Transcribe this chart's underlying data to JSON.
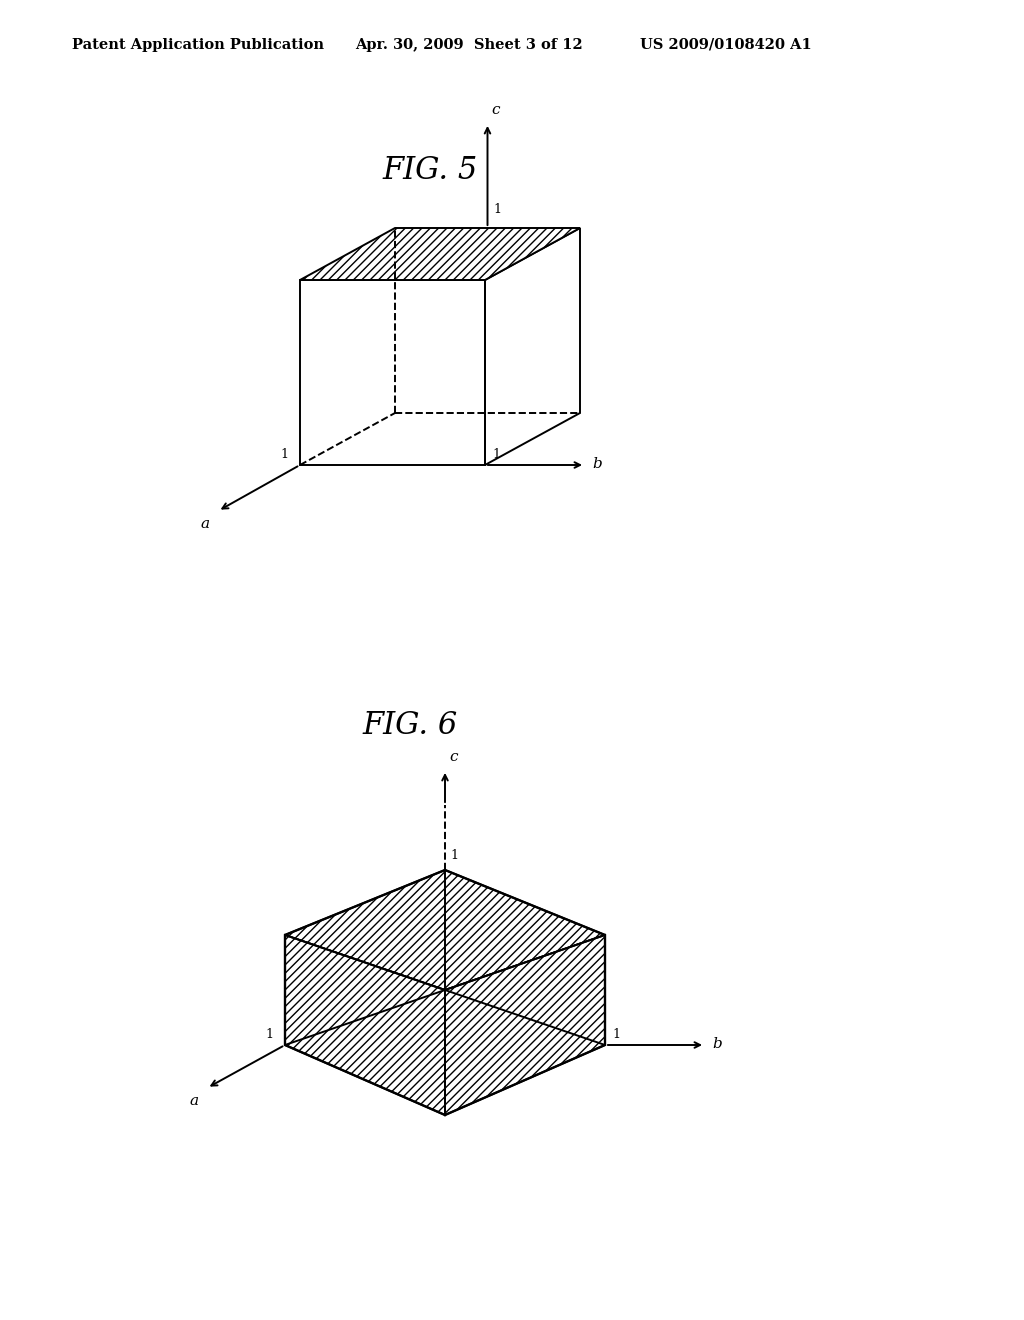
{
  "bg_color": "#ffffff",
  "header_left": "Patent Application Publication",
  "header_center": "Apr. 30, 2009  Sheet 3 of 12",
  "header_right": "US 2009/0108420 A1",
  "fig5_title": "FIG. 5",
  "fig6_title": "FIG. 6",
  "line_color": "#000000",
  "hatch_pattern": "////",
  "axis_label_fontsize": 11,
  "fig_title_fontsize": 22,
  "header_fontsize": 10.5
}
